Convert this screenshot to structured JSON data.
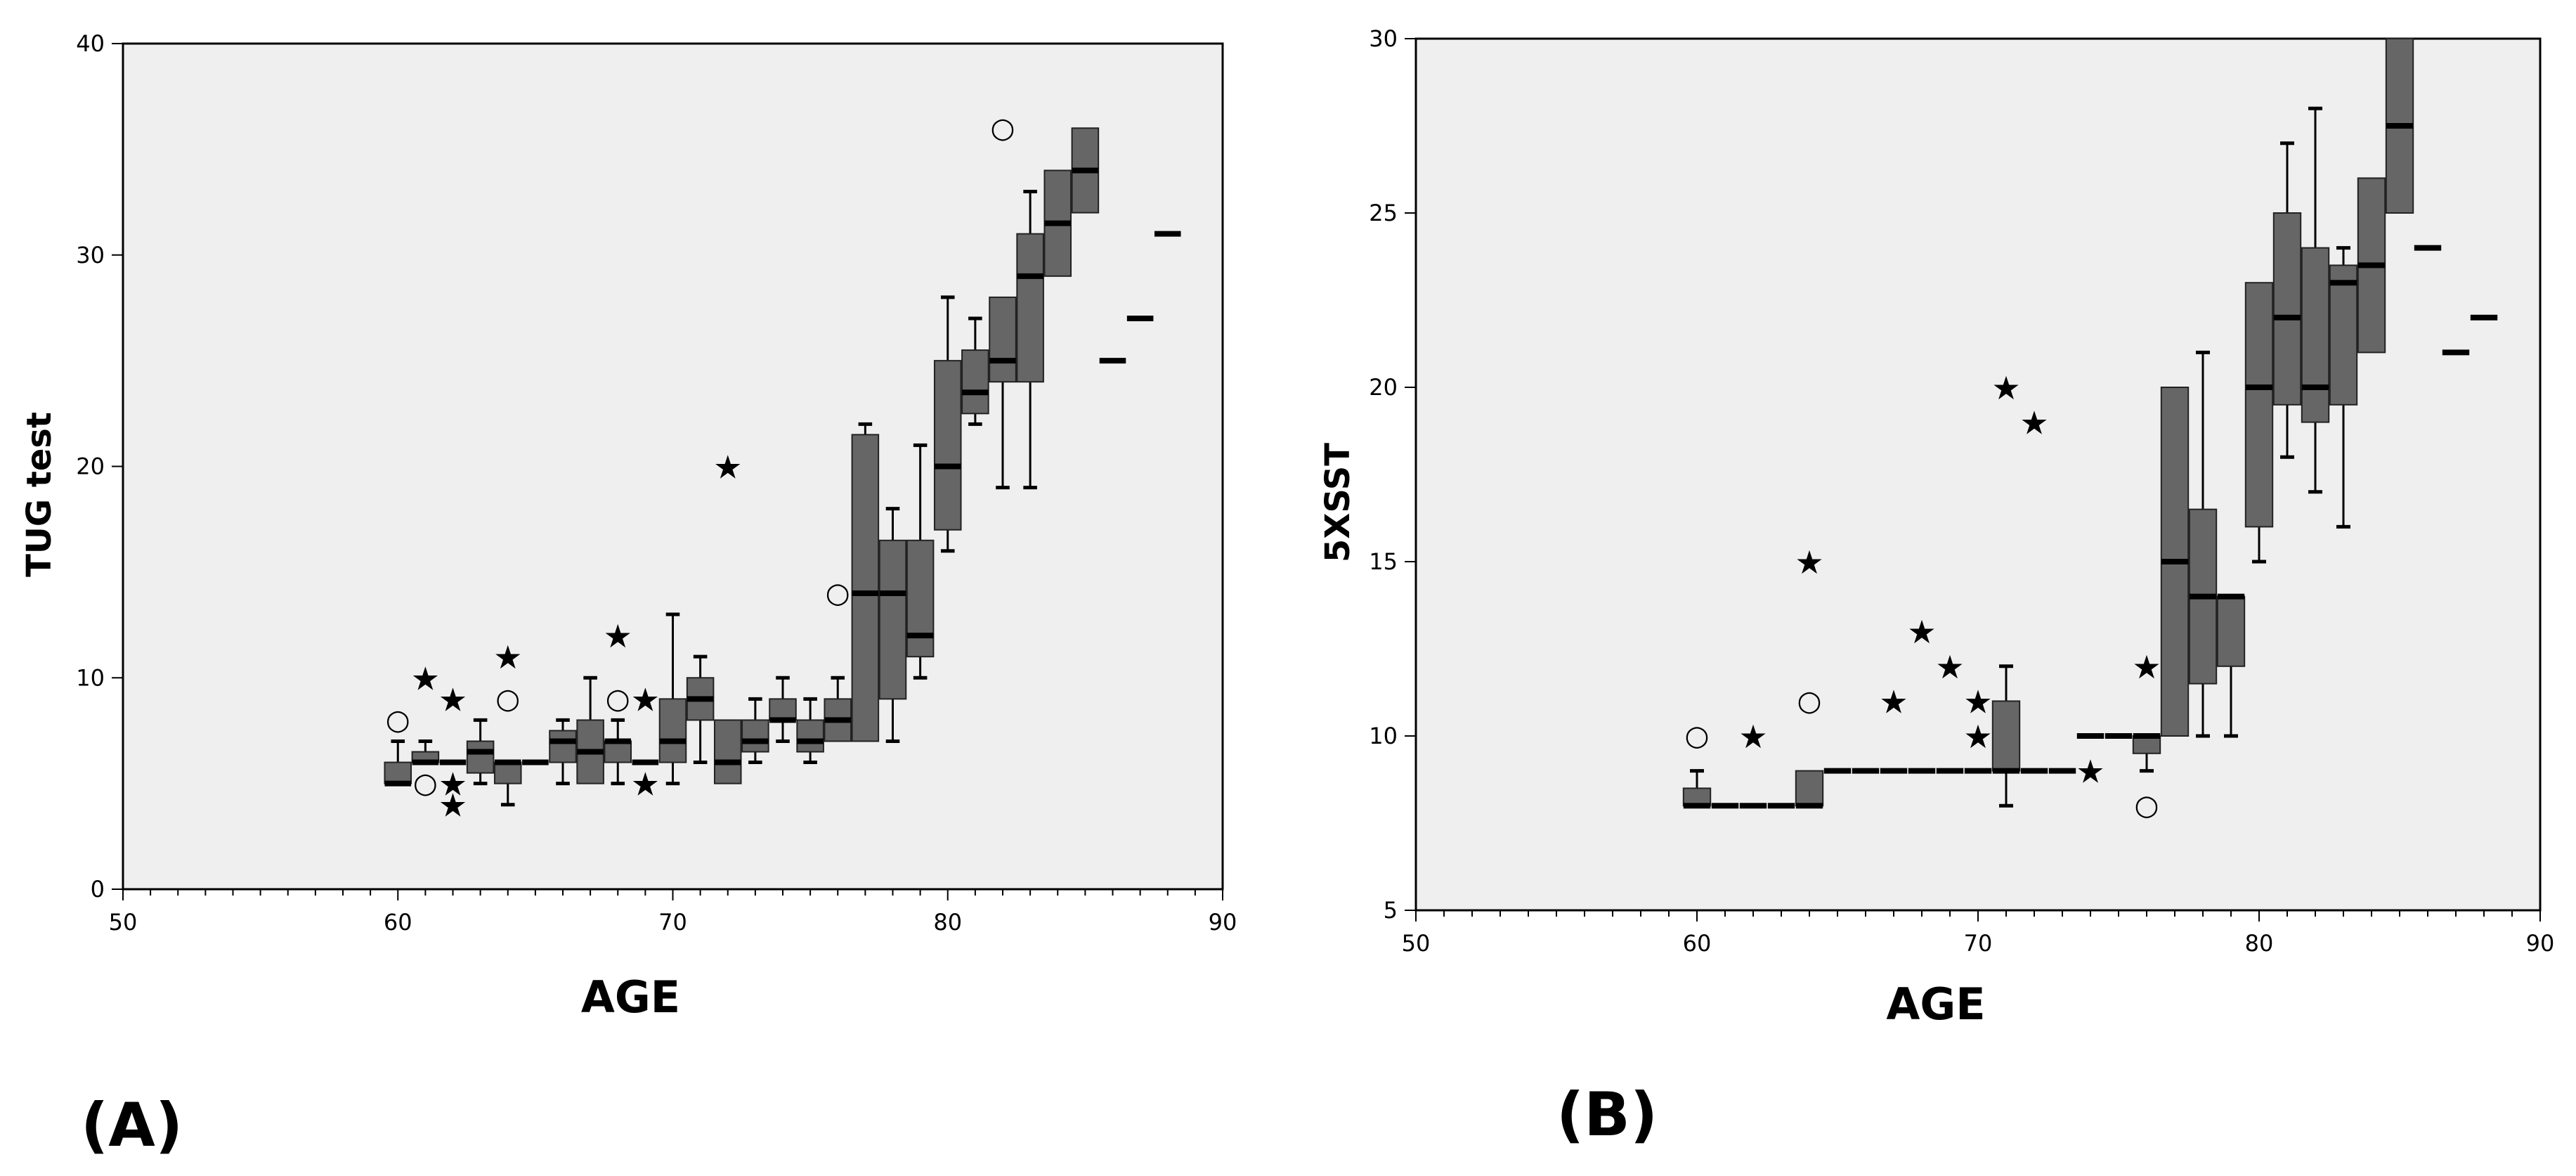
{
  "colors": {
    "plot_bg": "#efefef",
    "box_fill": "#666666",
    "box_edge": "#222222",
    "line": "#000000"
  },
  "chart_data": [
    {
      "type": "boxplot",
      "panel_label": "(A)",
      "xlabel": "AGE",
      "ylabel": "TUG test",
      "xlim": [
        50,
        90
      ],
      "ylim": [
        0,
        40
      ],
      "xticks": [
        50,
        60,
        70,
        80,
        90
      ],
      "yticks": [
        0,
        10,
        20,
        30,
        40
      ],
      "grid": false,
      "boxes": [
        {
          "x": 60,
          "q1": 5,
          "median": 5,
          "q3": 6,
          "wl": 5,
          "wh": 7
        },
        {
          "x": 61,
          "q1": 6,
          "median": 6,
          "q3": 6.5,
          "wl": 6,
          "wh": 7
        },
        {
          "x": 62,
          "q1": 6,
          "median": 6,
          "q3": 6,
          "wl": 6,
          "wh": 6
        },
        {
          "x": 63,
          "q1": 5.5,
          "median": 6.5,
          "q3": 7,
          "wl": 5,
          "wh": 8
        },
        {
          "x": 64,
          "q1": 5,
          "median": 6,
          "q3": 6,
          "wl": 4,
          "wh": 6
        },
        {
          "x": 65,
          "q1": 6,
          "median": 6,
          "q3": 6,
          "wl": 6,
          "wh": 6
        },
        {
          "x": 66,
          "q1": 6,
          "median": 7,
          "q3": 7.5,
          "wl": 5,
          "wh": 8
        },
        {
          "x": 67,
          "q1": 5,
          "median": 6.5,
          "q3": 8,
          "wl": 5,
          "wh": 10
        },
        {
          "x": 68,
          "q1": 6,
          "median": 7,
          "q3": 7,
          "wl": 5,
          "wh": 8
        },
        {
          "x": 69,
          "q1": 6,
          "median": 6,
          "q3": 6,
          "wl": 6,
          "wh": 6
        },
        {
          "x": 70,
          "q1": 6,
          "median": 7,
          "q3": 9,
          "wl": 5,
          "wh": 13
        },
        {
          "x": 71,
          "q1": 8,
          "median": 9,
          "q3": 10,
          "wl": 6,
          "wh": 11
        },
        {
          "x": 72,
          "q1": 5,
          "median": 6,
          "q3": 8,
          "wl": 5,
          "wh": 8
        },
        {
          "x": 73,
          "q1": 6.5,
          "median": 7,
          "q3": 8,
          "wl": 6,
          "wh": 9
        },
        {
          "x": 74,
          "q1": 8,
          "median": 8,
          "q3": 9,
          "wl": 7,
          "wh": 10
        },
        {
          "x": 75,
          "q1": 6.5,
          "median": 7,
          "q3": 8,
          "wl": 6,
          "wh": 9
        },
        {
          "x": 76,
          "q1": 7,
          "median": 8,
          "q3": 9,
          "wl": 7,
          "wh": 10
        },
        {
          "x": 77,
          "q1": 7,
          "median": 14,
          "q3": 21.5,
          "wl": 7,
          "wh": 22
        },
        {
          "x": 78,
          "q1": 9,
          "median": 14,
          "q3": 16.5,
          "wl": 7,
          "wh": 18
        },
        {
          "x": 79,
          "q1": 11,
          "median": 12,
          "q3": 16.5,
          "wl": 10,
          "wh": 21
        },
        {
          "x": 80,
          "q1": 17,
          "median": 20,
          "q3": 25,
          "wl": 16,
          "wh": 28
        },
        {
          "x": 81,
          "q1": 22.5,
          "median": 23.5,
          "q3": 25.5,
          "wl": 22,
          "wh": 27
        },
        {
          "x": 82,
          "q1": 24,
          "median": 25,
          "q3": 28,
          "wl": 19,
          "wh": 28
        },
        {
          "x": 83,
          "q1": 24,
          "median": 29,
          "q3": 31,
          "wl": 19,
          "wh": 33
        },
        {
          "x": 84,
          "q1": 29,
          "median": 31.5,
          "q3": 34,
          "wl": 29,
          "wh": 34
        },
        {
          "x": 85,
          "q1": 32,
          "median": 34,
          "q3": 36,
          "wl": 32,
          "wh": 36
        },
        {
          "x": 86,
          "q1": 25,
          "median": 25,
          "q3": 25,
          "wl": 25,
          "wh": 25
        },
        {
          "x": 87,
          "q1": 27,
          "median": 27,
          "q3": 27,
          "wl": 27,
          "wh": 27
        },
        {
          "x": 88,
          "q1": 31,
          "median": 31,
          "q3": 31,
          "wl": 31,
          "wh": 31
        }
      ],
      "outliers": [
        {
          "x": 60,
          "y": 8,
          "marker": "circle"
        },
        {
          "x": 61,
          "y": 10,
          "marker": "star"
        },
        {
          "x": 61,
          "y": 5,
          "marker": "circle"
        },
        {
          "x": 62,
          "y": 9,
          "marker": "star"
        },
        {
          "x": 62,
          "y": 5,
          "marker": "star"
        },
        {
          "x": 62,
          "y": 4,
          "marker": "star"
        },
        {
          "x": 64,
          "y": 11,
          "marker": "star"
        },
        {
          "x": 64,
          "y": 9,
          "marker": "circle"
        },
        {
          "x": 68,
          "y": 12,
          "marker": "star"
        },
        {
          "x": 68,
          "y": 9,
          "marker": "circle"
        },
        {
          "x": 69,
          "y": 9,
          "marker": "star"
        },
        {
          "x": 69,
          "y": 5,
          "marker": "star"
        },
        {
          "x": 72,
          "y": 20,
          "marker": "star"
        },
        {
          "x": 76,
          "y": 14,
          "marker": "circle"
        },
        {
          "x": 82,
          "y": 36,
          "marker": "circle"
        }
      ]
    },
    {
      "type": "boxplot",
      "panel_label": "(B)",
      "xlabel": "AGE",
      "ylabel": "5XSST",
      "xlim": [
        50,
        90
      ],
      "ylim": [
        5,
        30
      ],
      "xticks": [
        50,
        60,
        70,
        80,
        90
      ],
      "yticks": [
        5,
        10,
        15,
        20,
        25,
        30
      ],
      "grid": false,
      "boxes": [
        {
          "x": 60,
          "q1": 8,
          "median": 8,
          "q3": 8.5,
          "wl": 8,
          "wh": 9
        },
        {
          "x": 61,
          "q1": 8,
          "median": 8,
          "q3": 8,
          "wl": 8,
          "wh": 8
        },
        {
          "x": 62,
          "q1": 8,
          "median": 8,
          "q3": 8,
          "wl": 8,
          "wh": 8
        },
        {
          "x": 63,
          "q1": 8,
          "median": 8,
          "q3": 8,
          "wl": 8,
          "wh": 8
        },
        {
          "x": 64,
          "q1": 8,
          "median": 8,
          "q3": 9,
          "wl": 8,
          "wh": 9
        },
        {
          "x": 65,
          "q1": 9,
          "median": 9,
          "q3": 9,
          "wl": 9,
          "wh": 9
        },
        {
          "x": 66,
          "q1": 9,
          "median": 9,
          "q3": 9,
          "wl": 9,
          "wh": 9
        },
        {
          "x": 67,
          "q1": 9,
          "median": 9,
          "q3": 9,
          "wl": 9,
          "wh": 9
        },
        {
          "x": 68,
          "q1": 9,
          "median": 9,
          "q3": 9,
          "wl": 9,
          "wh": 9
        },
        {
          "x": 69,
          "q1": 9,
          "median": 9,
          "q3": 9,
          "wl": 9,
          "wh": 9
        },
        {
          "x": 70,
          "q1": 9,
          "median": 9,
          "q3": 9,
          "wl": 9,
          "wh": 9
        },
        {
          "x": 71,
          "q1": 9,
          "median": 9,
          "q3": 11,
          "wl": 8,
          "wh": 12
        },
        {
          "x": 72,
          "q1": 9,
          "median": 9,
          "q3": 9,
          "wl": 9,
          "wh": 9
        },
        {
          "x": 73,
          "q1": 9,
          "median": 9,
          "q3": 9,
          "wl": 9,
          "wh": 9
        },
        {
          "x": 74,
          "q1": 10,
          "median": 10,
          "q3": 10,
          "wl": 10,
          "wh": 10
        },
        {
          "x": 75,
          "q1": 10,
          "median": 10,
          "q3": 10,
          "wl": 10,
          "wh": 10
        },
        {
          "x": 76,
          "q1": 9.5,
          "median": 10,
          "q3": 10,
          "wl": 9,
          "wh": 10
        },
        {
          "x": 77,
          "q1": 10,
          "median": 15,
          "q3": 20,
          "wl": 10,
          "wh": 20
        },
        {
          "x": 78,
          "q1": 11.5,
          "median": 14,
          "q3": 16.5,
          "wl": 10,
          "wh": 21
        },
        {
          "x": 79,
          "q1": 12,
          "median": 14,
          "q3": 14,
          "wl": 10,
          "wh": 14
        },
        {
          "x": 80,
          "q1": 16,
          "median": 20,
          "q3": 23,
          "wl": 15,
          "wh": 23
        },
        {
          "x": 81,
          "q1": 19.5,
          "median": 22,
          "q3": 25,
          "wl": 18,
          "wh": 27
        },
        {
          "x": 82,
          "q1": 19,
          "median": 20,
          "q3": 24,
          "wl": 17,
          "wh": 28
        },
        {
          "x": 83,
          "q1": 19.5,
          "median": 23,
          "q3": 23.5,
          "wl": 16,
          "wh": 24
        },
        {
          "x": 84,
          "q1": 21,
          "median": 23.5,
          "q3": 26,
          "wl": 21,
          "wh": 26
        },
        {
          "x": 85,
          "q1": 25,
          "median": 27.5,
          "q3": 30,
          "wl": 25,
          "wh": 30
        },
        {
          "x": 86,
          "q1": 24,
          "median": 24,
          "q3": 24,
          "wl": 24,
          "wh": 24
        },
        {
          "x": 87,
          "q1": 21,
          "median": 21,
          "q3": 21,
          "wl": 21,
          "wh": 21
        },
        {
          "x": 88,
          "q1": 22,
          "median": 22,
          "q3": 22,
          "wl": 22,
          "wh": 22
        }
      ],
      "outliers": [
        {
          "x": 60,
          "y": 10,
          "marker": "circle"
        },
        {
          "x": 62,
          "y": 10,
          "marker": "star"
        },
        {
          "x": 64,
          "y": 15,
          "marker": "star"
        },
        {
          "x": 64,
          "y": 11,
          "marker": "circle"
        },
        {
          "x": 67,
          "y": 11,
          "marker": "star"
        },
        {
          "x": 68,
          "y": 13,
          "marker": "star"
        },
        {
          "x": 69,
          "y": 12,
          "marker": "star"
        },
        {
          "x": 70,
          "y": 11,
          "marker": "star"
        },
        {
          "x": 70,
          "y": 10,
          "marker": "star"
        },
        {
          "x": 71,
          "y": 20,
          "marker": "star"
        },
        {
          "x": 72,
          "y": 19,
          "marker": "star"
        },
        {
          "x": 74,
          "y": 9,
          "marker": "star"
        },
        {
          "x": 76,
          "y": 12,
          "marker": "star"
        },
        {
          "x": 76,
          "y": 8,
          "marker": "circle"
        }
      ]
    }
  ]
}
